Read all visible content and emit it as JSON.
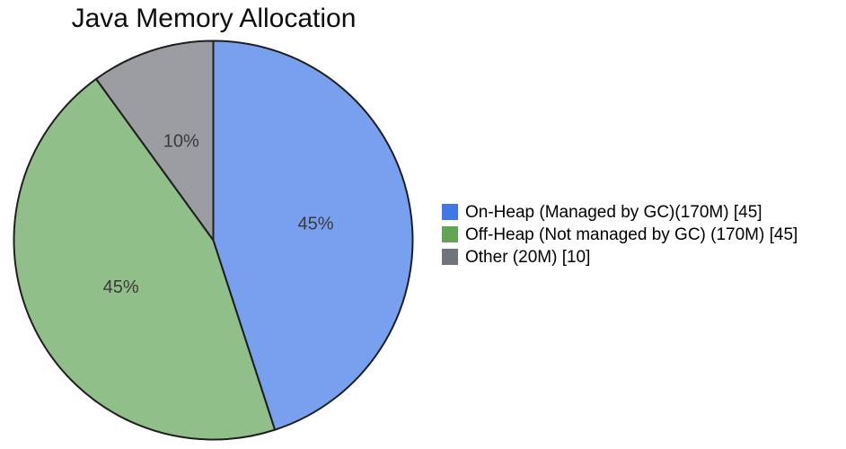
{
  "title": "Java Memory Allocation",
  "chart_data": {
    "type": "pie",
    "title": "Java Memory Allocation",
    "start_angle_deg": 0,
    "direction": "clockwise",
    "legend_position": "right",
    "grid": false,
    "edge_color": "#1f1f1f",
    "edge_width": 2,
    "slice_fill_opacity": 0.7,
    "pct_label_color": "#3a3a3a",
    "slices": [
      {
        "label": "On-Heap (Managed by GC)(170M) [45]",
        "value": 45,
        "pct_label": "45%",
        "color": "#4077e8"
      },
      {
        "label": "Off-Heap (Not managed by GC) (170M) [45]",
        "value": 45,
        "pct_label": "45%",
        "color": "#63a457"
      },
      {
        "label": "Other (20M) [10]",
        "value": 10,
        "pct_label": "10%",
        "color": "#70747c"
      }
    ]
  }
}
